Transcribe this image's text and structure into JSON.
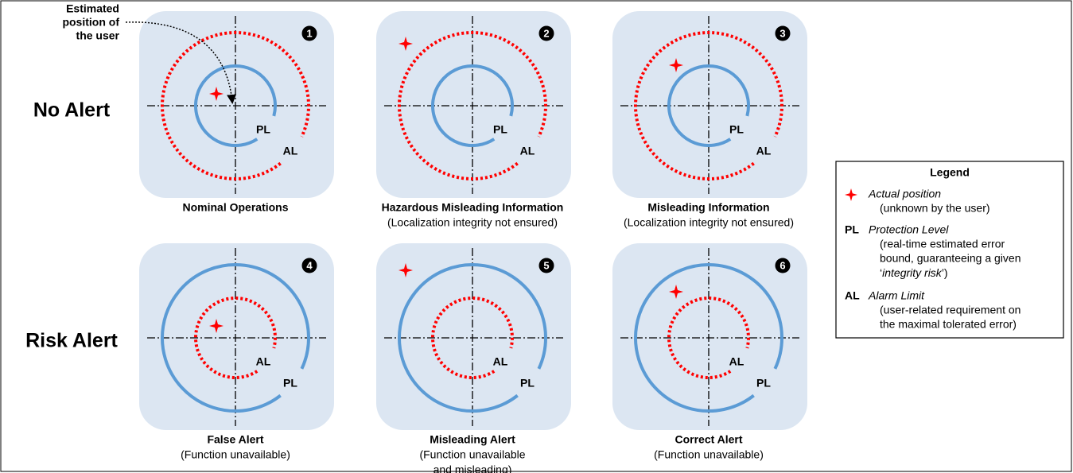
{
  "annotation": [
    "Estimated",
    "position of",
    "the user"
  ],
  "rows": [
    "No Alert",
    "Risk Alert"
  ],
  "panels": [
    {
      "number": "1",
      "labels": [
        "PL",
        "AL"
      ],
      "caption": [
        "Nominal Operations"
      ]
    },
    {
      "number": "2",
      "labels": [
        "PL",
        "AL"
      ],
      "caption": [
        "Hazardous Misleading Information",
        "(Localization integrity not ensured)"
      ]
    },
    {
      "number": "3",
      "labels": [
        "PL",
        "AL"
      ],
      "caption": [
        "Misleading Information",
        "(Localization integrity not ensured)"
      ]
    },
    {
      "number": "4",
      "labels": [
        "AL",
        "PL"
      ],
      "caption": [
        "False Alert",
        "(Function unavailable)"
      ]
    },
    {
      "number": "5",
      "labels": [
        "AL",
        "PL"
      ],
      "caption": [
        "Misleading Alert",
        "(Function unavailable",
        "and misleading)"
      ]
    },
    {
      "number": "6",
      "labels": [
        "AL",
        "PL"
      ],
      "caption": [
        "Correct Alert",
        "(Function unavailable)"
      ]
    }
  ],
  "legend": {
    "title": "Legend",
    "entries": [
      {
        "term": "Actual position",
        "desc": [
          "(unknown by the user)"
        ]
      },
      {
        "abbr": "PL",
        "term": "Protection Level",
        "desc": [
          "(real-time estimated error",
          "bound, guaranteeing a given"
        ],
        "last": [
          "‘",
          "integrity risk",
          "’)"
        ]
      },
      {
        "abbr": "AL",
        "term": "Alarm Limit",
        "desc": [
          "(user-related requirement on",
          "the maximal tolerated error)"
        ]
      }
    ]
  }
}
